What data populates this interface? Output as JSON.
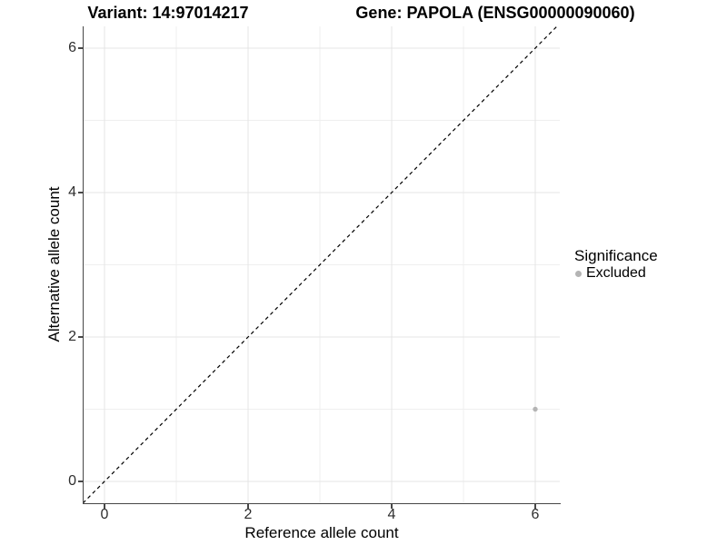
{
  "chart_data": {
    "type": "scatter",
    "title_left": "Variant: 14:97014217",
    "title_right": "Gene: PAPOLA (ENSG00000090060)",
    "xlabel": "Reference allele count",
    "ylabel": "Alternative allele count",
    "xlim": [
      -0.3,
      6.35
    ],
    "ylim": [
      -0.32,
      6.3
    ],
    "x_breaks": [
      0,
      2,
      4,
      6
    ],
    "y_breaks": [
      0,
      2,
      4,
      6
    ],
    "x_minor_breaks": [
      1,
      3,
      5
    ],
    "y_minor_breaks": [
      1,
      3,
      5
    ],
    "grid": true,
    "legend_position": "right",
    "legend": {
      "title": "Significance",
      "items": [
        {
          "label": "Excluded",
          "color": "#b4b4b4",
          "marker": "circle"
        }
      ]
    },
    "series": [
      {
        "name": "Excluded",
        "color": "#b4b4b4",
        "points": [
          {
            "x": 6,
            "y": 1
          }
        ]
      }
    ],
    "reference_line": {
      "kind": "identity y=x",
      "style": "dashed",
      "color": "#000000",
      "x": [
        -0.3,
        6.35
      ],
      "y": [
        -0.3,
        6.35
      ]
    }
  },
  "colors": {
    "background": "#ffffff",
    "grid_major": "#e4e4e4",
    "grid_minor": "#efefef",
    "axis_line": "#474747",
    "tick_text": "#2e2e2e",
    "title_text": "#000000"
  }
}
